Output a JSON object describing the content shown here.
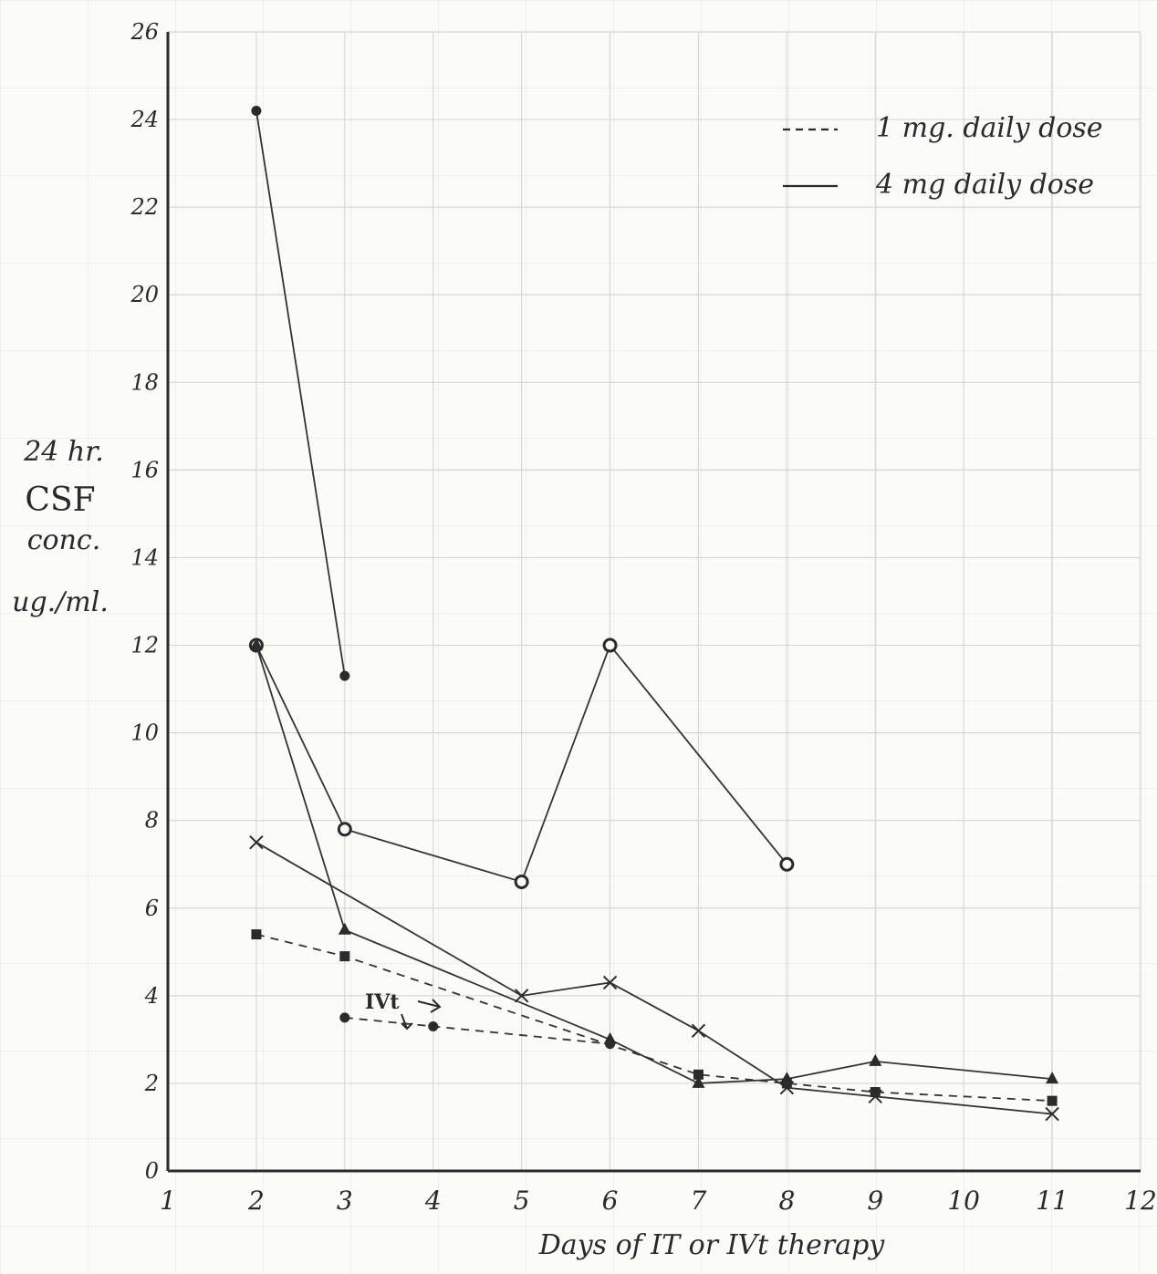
{
  "chart_data": {
    "type": "line",
    "title": "",
    "xlabel": "Days of IT or IVt therapy",
    "ylabel_lines": [
      "24 hr.",
      "CSF",
      "conc.",
      "ug./ml."
    ],
    "xlim": [
      1,
      12
    ],
    "ylim": [
      0,
      26
    ],
    "x_ticks": [
      "1",
      "2",
      "3",
      "4",
      "5",
      "6",
      "7",
      "8",
      "9",
      "10",
      "11",
      "12"
    ],
    "y_ticks": [
      "0",
      "2",
      "4",
      "6",
      "8",
      "10",
      "12",
      "14",
      "16",
      "18",
      "20",
      "22",
      "24",
      "26"
    ],
    "grid": true,
    "legend": {
      "placement": "top-right",
      "items": [
        {
          "style": "dashed",
          "label": "1 mg. daily dose"
        },
        {
          "style": "solid",
          "label": "4 mg daily dose"
        }
      ]
    },
    "annotation": "IVt",
    "series": [
      {
        "style": "solid",
        "marker": "dot",
        "x": [
          2,
          3
        ],
        "y": [
          24.2,
          11.3
        ]
      },
      {
        "style": "solid",
        "marker": "circle",
        "x": [
          2,
          3,
          5,
          6,
          8
        ],
        "y": [
          12.0,
          7.8,
          6.6,
          12.0,
          7.0
        ]
      },
      {
        "style": "solid",
        "marker": "triangle",
        "x": [
          2,
          3,
          6,
          7,
          8,
          9,
          11
        ],
        "y": [
          12.0,
          5.5,
          3.0,
          2.0,
          2.1,
          2.5,
          2.1
        ]
      },
      {
        "style": "solid",
        "marker": "x",
        "x": [
          2,
          5,
          6,
          7,
          8,
          9,
          11
        ],
        "y": [
          7.5,
          4.0,
          4.3,
          3.2,
          1.9,
          1.7,
          1.3
        ]
      },
      {
        "style": "dashed",
        "marker": "square",
        "x": [
          2,
          3,
          7,
          8,
          9,
          11
        ],
        "y": [
          5.4,
          4.9,
          2.2,
          2.0,
          1.8,
          1.6
        ]
      },
      {
        "style": "dashed",
        "marker": "dot",
        "x": [
          3,
          4,
          6
        ],
        "y": [
          3.5,
          3.3,
          2.9
        ]
      }
    ]
  }
}
